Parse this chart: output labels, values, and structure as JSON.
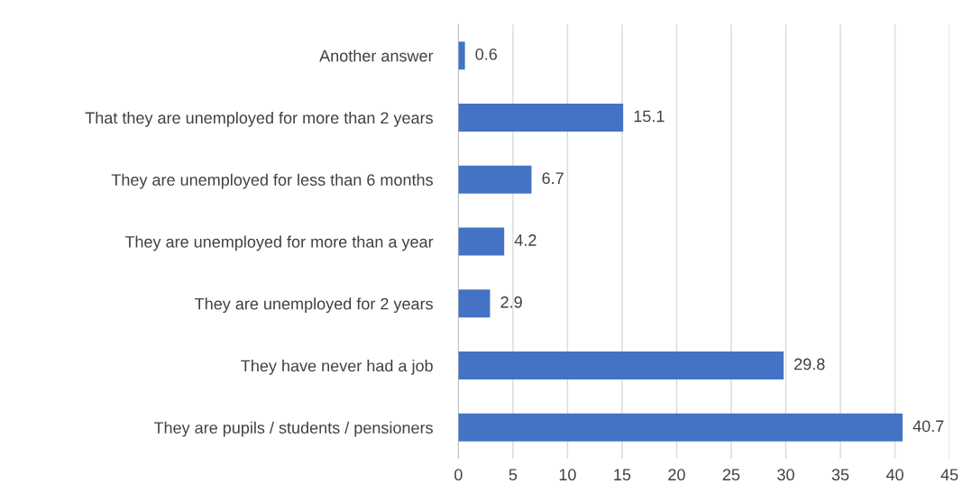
{
  "chart_data": {
    "type": "bar",
    "orientation": "horizontal",
    "categories": [
      "Another answer",
      "That they are unemployed for more than 2 years",
      "They are unemployed for less than 6 months",
      "They are unemployed for more than a year",
      "They are unemployed for 2 years",
      "They have never had a job",
      "They are pupils / students / pensioners"
    ],
    "values": [
      0.6,
      15.1,
      6.7,
      4.2,
      2.9,
      29.8,
      40.7
    ],
    "color": "#4472c4",
    "xlim": [
      0,
      45
    ],
    "xticks": [
      0,
      5,
      10,
      15,
      20,
      25,
      30,
      35,
      40,
      45
    ],
    "grid": "x",
    "data_labels": true
  }
}
